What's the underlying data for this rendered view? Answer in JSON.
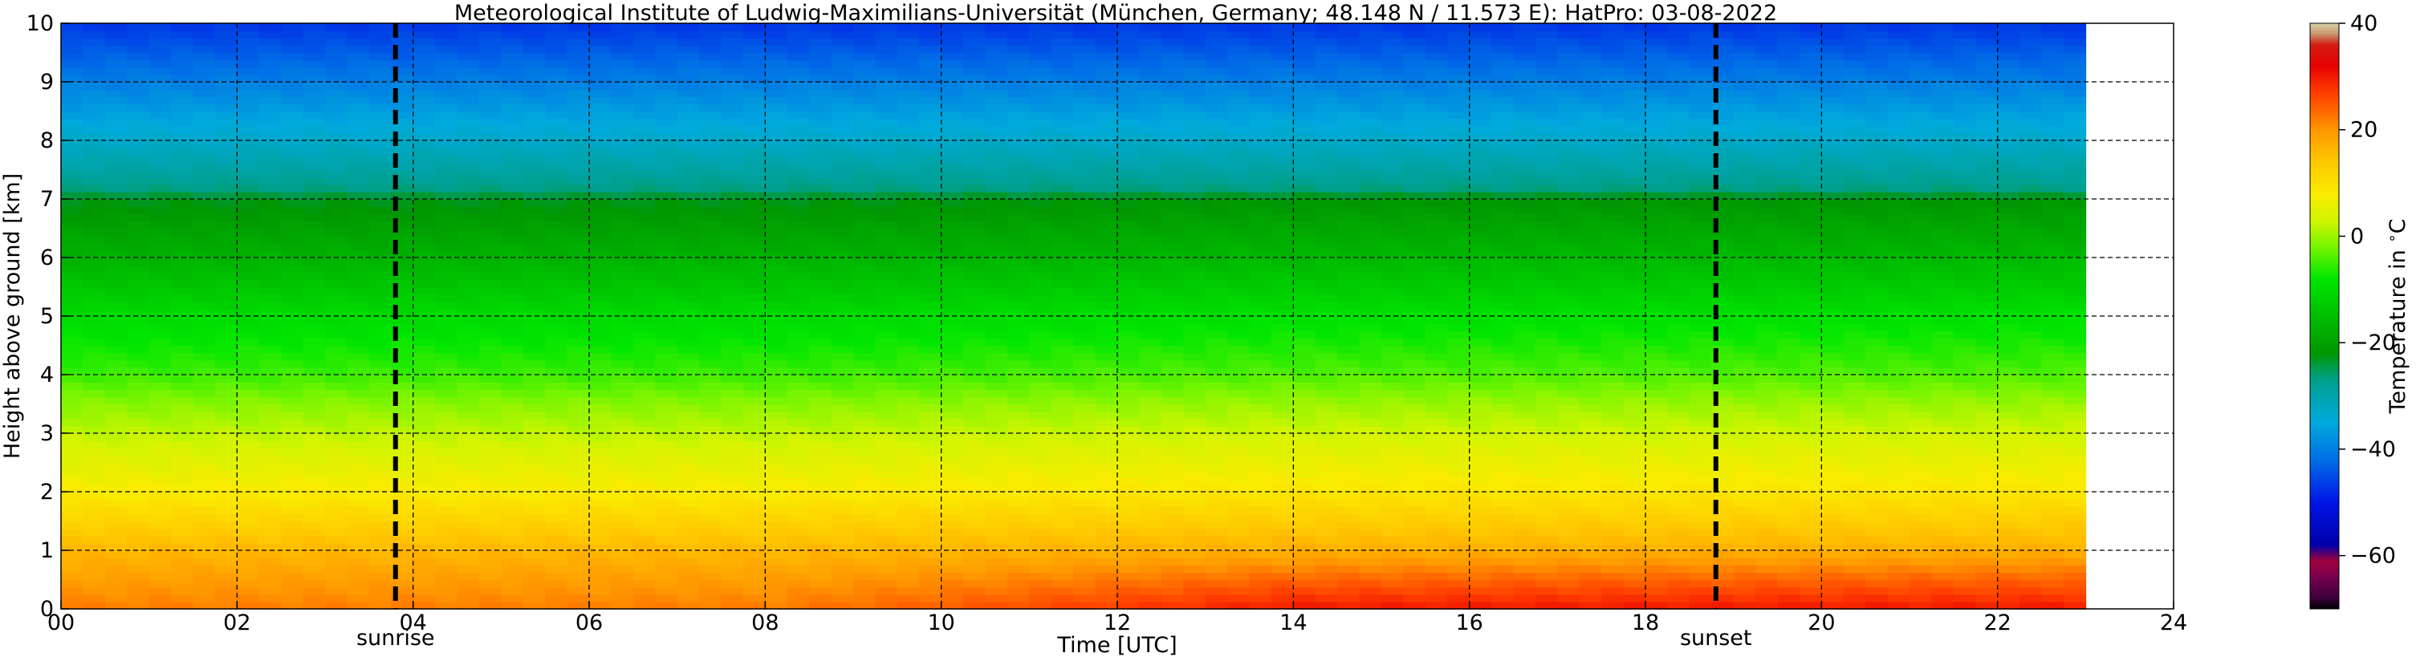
{
  "chart_data": {
    "type": "heatmap",
    "title": "Meteorological Institute of Ludwig-Maximilians-Universität (München, Germany; 48.148 N / 11.573 E):    HatPro: 03-08-2022",
    "xlabel": "Time [UTC]",
    "ylabel": "Height above ground [km]",
    "xlim": [
      0,
      24
    ],
    "ylim": [
      0,
      10
    ],
    "x_ticks": [
      "00",
      "02",
      "04",
      "06",
      "08",
      "10",
      "12",
      "14",
      "16",
      "18",
      "20",
      "22",
      "24"
    ],
    "y_ticks": [
      "0",
      "1",
      "2",
      "3",
      "4",
      "5",
      "6",
      "7",
      "8",
      "9",
      "10"
    ],
    "grid": true,
    "data_time_range": [
      0,
      23
    ],
    "annotations": [
      {
        "label": "sunrise",
        "x": 3.8
      },
      {
        "label": "sunset",
        "x": 18.8
      }
    ],
    "colorbar": {
      "label": "Temperature in $^\\circ$C",
      "range": [
        -70,
        40
      ],
      "ticks": [
        "40",
        "20",
        "0",
        "−20",
        "−40",
        "−60"
      ],
      "tick_values": [
        40,
        20,
        0,
        -20,
        -40,
        -60
      ]
    },
    "temperature_profile": {
      "heights_km": [
        0,
        0.5,
        1,
        1.5,
        2,
        2.5,
        3,
        3.5,
        4,
        5,
        6,
        7,
        7.2,
        8,
        9,
        10
      ],
      "morning_celsius": [
        22,
        19,
        16,
        12,
        8,
        5,
        2,
        -1,
        -5,
        -10,
        -17,
        -23,
        -27,
        -33,
        -40,
        -47
      ],
      "afternoon_celsius": [
        30,
        24,
        17,
        13,
        9,
        6,
        3,
        0,
        -4,
        -9,
        -16,
        -22,
        -27,
        -33,
        -40,
        -47
      ]
    }
  }
}
